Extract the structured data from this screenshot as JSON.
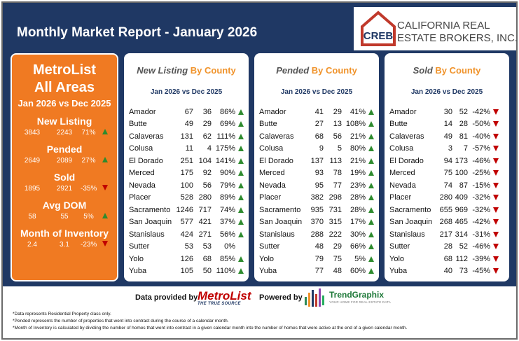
{
  "header": {
    "title": "Monthly Market Report - January 2026",
    "logo_mark": "CREB",
    "logo_line1": "CALIFORNIA REAL",
    "logo_line2": "ESTATE BROKERS, INC."
  },
  "colors": {
    "navy": "#1f3864",
    "orange": "#f07a22",
    "up": "#2e8b2e",
    "down": "#c00000"
  },
  "summary": {
    "title_line1": "MetroList",
    "title_line2": "All Areas",
    "subtitle": "Jan 2026 vs Dec 2025",
    "metrics": [
      {
        "label": "New Listing",
        "current": "3843",
        "previous": "2243",
        "pct": "71%",
        "direction": "up"
      },
      {
        "label": "Pended",
        "current": "2649",
        "previous": "2089",
        "pct": "27%",
        "direction": "up"
      },
      {
        "label": "Sold",
        "current": "1895",
        "previous": "2921",
        "pct": "-35%",
        "direction": "down"
      },
      {
        "label": "Avg DOM",
        "current": "58",
        "previous": "55",
        "pct": "5%",
        "direction": "up"
      },
      {
        "label": "Month of Inventory",
        "current": "2.4",
        "previous": "3.1",
        "pct": "-23%",
        "direction": "down"
      }
    ]
  },
  "cards": [
    {
      "title_part1": "New Listing",
      "title_part2": "By County",
      "subtitle": "Jan 2026 vs Dec 2025",
      "rows": [
        {
          "county": "Amador",
          "current": "67",
          "previous": "36",
          "pct": "86%",
          "direction": "up"
        },
        {
          "county": "Butte",
          "current": "49",
          "previous": "29",
          "pct": "69%",
          "direction": "up"
        },
        {
          "county": "Calaveras",
          "current": "131",
          "previous": "62",
          "pct": "111%",
          "direction": "up"
        },
        {
          "county": "Colusa",
          "current": "11",
          "previous": "4",
          "pct": "175%",
          "direction": "up"
        },
        {
          "county": "El Dorado",
          "current": "251",
          "previous": "104",
          "pct": "141%",
          "direction": "up"
        },
        {
          "county": "Merced",
          "current": "175",
          "previous": "92",
          "pct": "90%",
          "direction": "up"
        },
        {
          "county": "Nevada",
          "current": "100",
          "previous": "56",
          "pct": "79%",
          "direction": "up"
        },
        {
          "county": "Placer",
          "current": "528",
          "previous": "280",
          "pct": "89%",
          "direction": "up"
        },
        {
          "county": "Sacramento",
          "current": "1246",
          "previous": "717",
          "pct": "74%",
          "direction": "up"
        },
        {
          "county": "San Joaquin",
          "current": "577",
          "previous": "421",
          "pct": "37%",
          "direction": "up"
        },
        {
          "county": "Stanislaus",
          "current": "424",
          "previous": "271",
          "pct": "56%",
          "direction": "up"
        },
        {
          "county": "Sutter",
          "current": "53",
          "previous": "53",
          "pct": "0%",
          "direction": "none"
        },
        {
          "county": "Yolo",
          "current": "126",
          "previous": "68",
          "pct": "85%",
          "direction": "up"
        },
        {
          "county": "Yuba",
          "current": "105",
          "previous": "50",
          "pct": "110%",
          "direction": "up"
        }
      ]
    },
    {
      "title_part1": "Pended",
      "title_part2": "By County",
      "subtitle": "Jan 2026 vs Dec 2025",
      "rows": [
        {
          "county": "Amador",
          "current": "41",
          "previous": "29",
          "pct": "41%",
          "direction": "up"
        },
        {
          "county": "Butte",
          "current": "27",
          "previous": "13",
          "pct": "108%",
          "direction": "up"
        },
        {
          "county": "Calaveras",
          "current": "68",
          "previous": "56",
          "pct": "21%",
          "direction": "up"
        },
        {
          "county": "Colusa",
          "current": "9",
          "previous": "5",
          "pct": "80%",
          "direction": "up"
        },
        {
          "county": "El Dorado",
          "current": "137",
          "previous": "113",
          "pct": "21%",
          "direction": "up"
        },
        {
          "county": "Merced",
          "current": "93",
          "previous": "78",
          "pct": "19%",
          "direction": "up"
        },
        {
          "county": "Nevada",
          "current": "95",
          "previous": "77",
          "pct": "23%",
          "direction": "up"
        },
        {
          "county": "Placer",
          "current": "382",
          "previous": "298",
          "pct": "28%",
          "direction": "up"
        },
        {
          "county": "Sacramento",
          "current": "935",
          "previous": "731",
          "pct": "28%",
          "direction": "up"
        },
        {
          "county": "San Joaquin",
          "current": "370",
          "previous": "315",
          "pct": "17%",
          "direction": "up"
        },
        {
          "county": "Stanislaus",
          "current": "288",
          "previous": "222",
          "pct": "30%",
          "direction": "up"
        },
        {
          "county": "Sutter",
          "current": "48",
          "previous": "29",
          "pct": "66%",
          "direction": "up"
        },
        {
          "county": "Yolo",
          "current": "79",
          "previous": "75",
          "pct": "5%",
          "direction": "up"
        },
        {
          "county": "Yuba",
          "current": "77",
          "previous": "48",
          "pct": "60%",
          "direction": "up"
        }
      ]
    },
    {
      "title_part1": "Sold",
      "title_part2": "By County",
      "subtitle": "Jan 2026 vs Dec 2025",
      "rows": [
        {
          "county": "Amador",
          "current": "30",
          "previous": "52",
          "pct": "-42%",
          "direction": "down"
        },
        {
          "county": "Butte",
          "current": "14",
          "previous": "28",
          "pct": "-50%",
          "direction": "down"
        },
        {
          "county": "Calaveras",
          "current": "49",
          "previous": "81",
          "pct": "-40%",
          "direction": "down"
        },
        {
          "county": "Colusa",
          "current": "3",
          "previous": "7",
          "pct": "-57%",
          "direction": "down"
        },
        {
          "county": "El Dorado",
          "current": "94",
          "previous": "173",
          "pct": "-46%",
          "direction": "down"
        },
        {
          "county": "Merced",
          "current": "75",
          "previous": "100",
          "pct": "-25%",
          "direction": "down"
        },
        {
          "county": "Nevada",
          "current": "74",
          "previous": "87",
          "pct": "-15%",
          "direction": "down"
        },
        {
          "county": "Placer",
          "current": "280",
          "previous": "409",
          "pct": "-32%",
          "direction": "down"
        },
        {
          "county": "Sacramento",
          "current": "655",
          "previous": "969",
          "pct": "-32%",
          "direction": "down"
        },
        {
          "county": "San Joaquin",
          "current": "268",
          "previous": "465",
          "pct": "-42%",
          "direction": "down"
        },
        {
          "county": "Stanislaus",
          "current": "217",
          "previous": "314",
          "pct": "-31%",
          "direction": "down"
        },
        {
          "county": "Sutter",
          "current": "28",
          "previous": "52",
          "pct": "-46%",
          "direction": "down"
        },
        {
          "county": "Yolo",
          "current": "68",
          "previous": "112",
          "pct": "-39%",
          "direction": "down"
        },
        {
          "county": "Yuba",
          "current": "40",
          "previous": "73",
          "pct": "-45%",
          "direction": "down"
        }
      ]
    }
  ],
  "footer": {
    "data_provided_label": "Data provided by",
    "metrolist_name": "MetroList",
    "metrolist_tagline": "THE TRUE SOURCE",
    "powered_by_label": "Powered by",
    "trendgraphix_name": "TrendGraphix",
    "trendgraphix_tagline": "YOUR HOME FOR REAL ESTATE DATA"
  },
  "notes": [
    "*Data represents Residential Property class only.",
    "*Pended represents the number of properties that went into contract during the course of a calendar month.",
    "*Month of Inventory is calculated by dividing the number of homes that went into contract in a given calendar month into the number of homes that were active at the end of a given calendar month."
  ]
}
